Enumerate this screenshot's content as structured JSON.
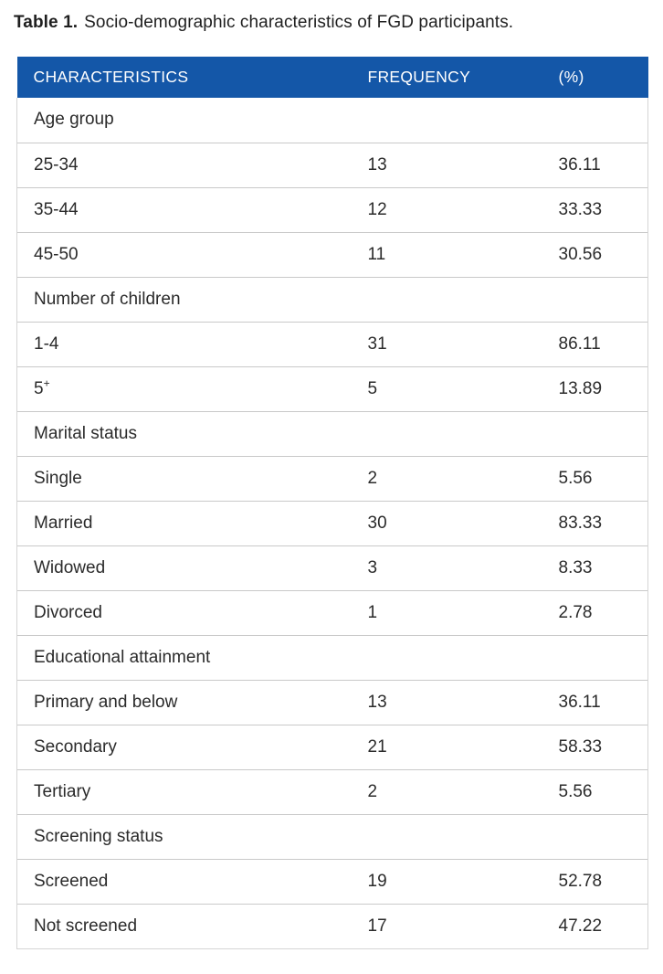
{
  "caption": {
    "label": "Table 1.",
    "text": "Socio-demographic characteristics of FGD participants."
  },
  "table": {
    "columns": [
      "CHARACTERISTICS",
      "FREQUENCY",
      "(%)"
    ],
    "sections": [
      {
        "header": "Age group",
        "rows": [
          {
            "label": "25-34",
            "freq": "13",
            "pct": "36.11"
          },
          {
            "label": "35-44",
            "freq": "12",
            "pct": "33.33"
          },
          {
            "label": "45-50",
            "freq": "11",
            "pct": "30.56"
          }
        ]
      },
      {
        "header": "Number of children",
        "rows": [
          {
            "label": "1-4",
            "freq": "31",
            "pct": "86.11"
          },
          {
            "label": "5",
            "label_sup": "+",
            "freq": "5",
            "pct": "13.89"
          }
        ]
      },
      {
        "header": "Marital status",
        "rows": [
          {
            "label": "Single",
            "freq": "2",
            "pct": "5.56"
          },
          {
            "label": "Married",
            "freq": "30",
            "pct": "83.33"
          },
          {
            "label": "Widowed",
            "freq": "3",
            "pct": "8.33"
          },
          {
            "label": "Divorced",
            "freq": "1",
            "pct": "2.78"
          }
        ]
      },
      {
        "header": "Educational attainment",
        "rows": [
          {
            "label": "Primary and below",
            "freq": "13",
            "pct": "36.11"
          },
          {
            "label": "Secondary",
            "freq": "21",
            "pct": "58.33"
          },
          {
            "label": "Tertiary",
            "freq": "2",
            "pct": "5.56"
          }
        ]
      },
      {
        "header": "Screening status",
        "rows": [
          {
            "label": "Screened",
            "freq": "19",
            "pct": "52.78"
          },
          {
            "label": "Not screened",
            "freq": "17",
            "pct": "47.22"
          }
        ]
      }
    ]
  },
  "colors": {
    "header_bg": "#1457A8",
    "header_text": "#ffffff",
    "row_border": "#c9c9c9",
    "outer_border": "#d5d5d5",
    "text": "#2b2b2b"
  }
}
